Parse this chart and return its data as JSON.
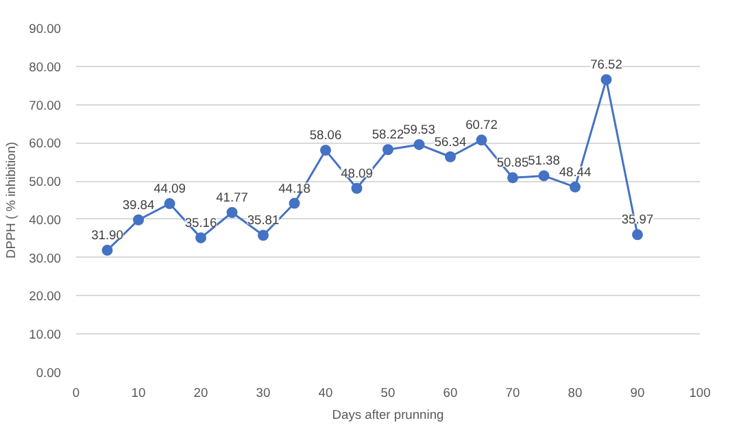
{
  "chart_data": {
    "type": "line",
    "xlabel": "Days after prunning",
    "ylabel": "DPPH ( % inhibition)",
    "x": [
      5,
      10,
      15,
      20,
      25,
      30,
      35,
      40,
      45,
      50,
      55,
      60,
      65,
      70,
      75,
      80,
      85,
      90
    ],
    "series": [
      {
        "color": "#4472c4",
        "values": [
          31.9,
          39.84,
          44.09,
          35.16,
          41.77,
          35.81,
          44.18,
          58.06,
          48.09,
          58.22,
          59.53,
          56.34,
          60.72,
          50.85,
          51.38,
          48.44,
          76.52,
          35.97
        ],
        "value_labels": [
          "31.90",
          "39.84",
          "44.09",
          "35.16",
          "41.77",
          "35.81",
          "44.18",
          "58.06",
          "48.09",
          "58.22",
          "59.53",
          "56.34",
          "60.72",
          "50.85",
          "51.38",
          "48.44",
          "76.52",
          "35.97"
        ]
      }
    ],
    "xlim": [
      0,
      100
    ],
    "xticks": [
      0,
      10,
      20,
      30,
      40,
      50,
      60,
      70,
      80,
      90,
      100
    ],
    "ylim": [
      0,
      90
    ],
    "yticks": [
      {
        "value": 0,
        "label": "0.00"
      },
      {
        "value": 10,
        "label": "10.00"
      },
      {
        "value": 20,
        "label": "20.00"
      },
      {
        "value": 30,
        "label": "30.00"
      },
      {
        "value": 40,
        "label": "40.00"
      },
      {
        "value": 50,
        "label": "50.00"
      },
      {
        "value": 60,
        "label": "60.00"
      },
      {
        "value": 70,
        "label": "70.00"
      },
      {
        "value": 80,
        "label": "80.00"
      },
      {
        "value": 90,
        "label": "90.00"
      }
    ],
    "grid": "y",
    "marker": "circle",
    "line_style": "solid"
  }
}
